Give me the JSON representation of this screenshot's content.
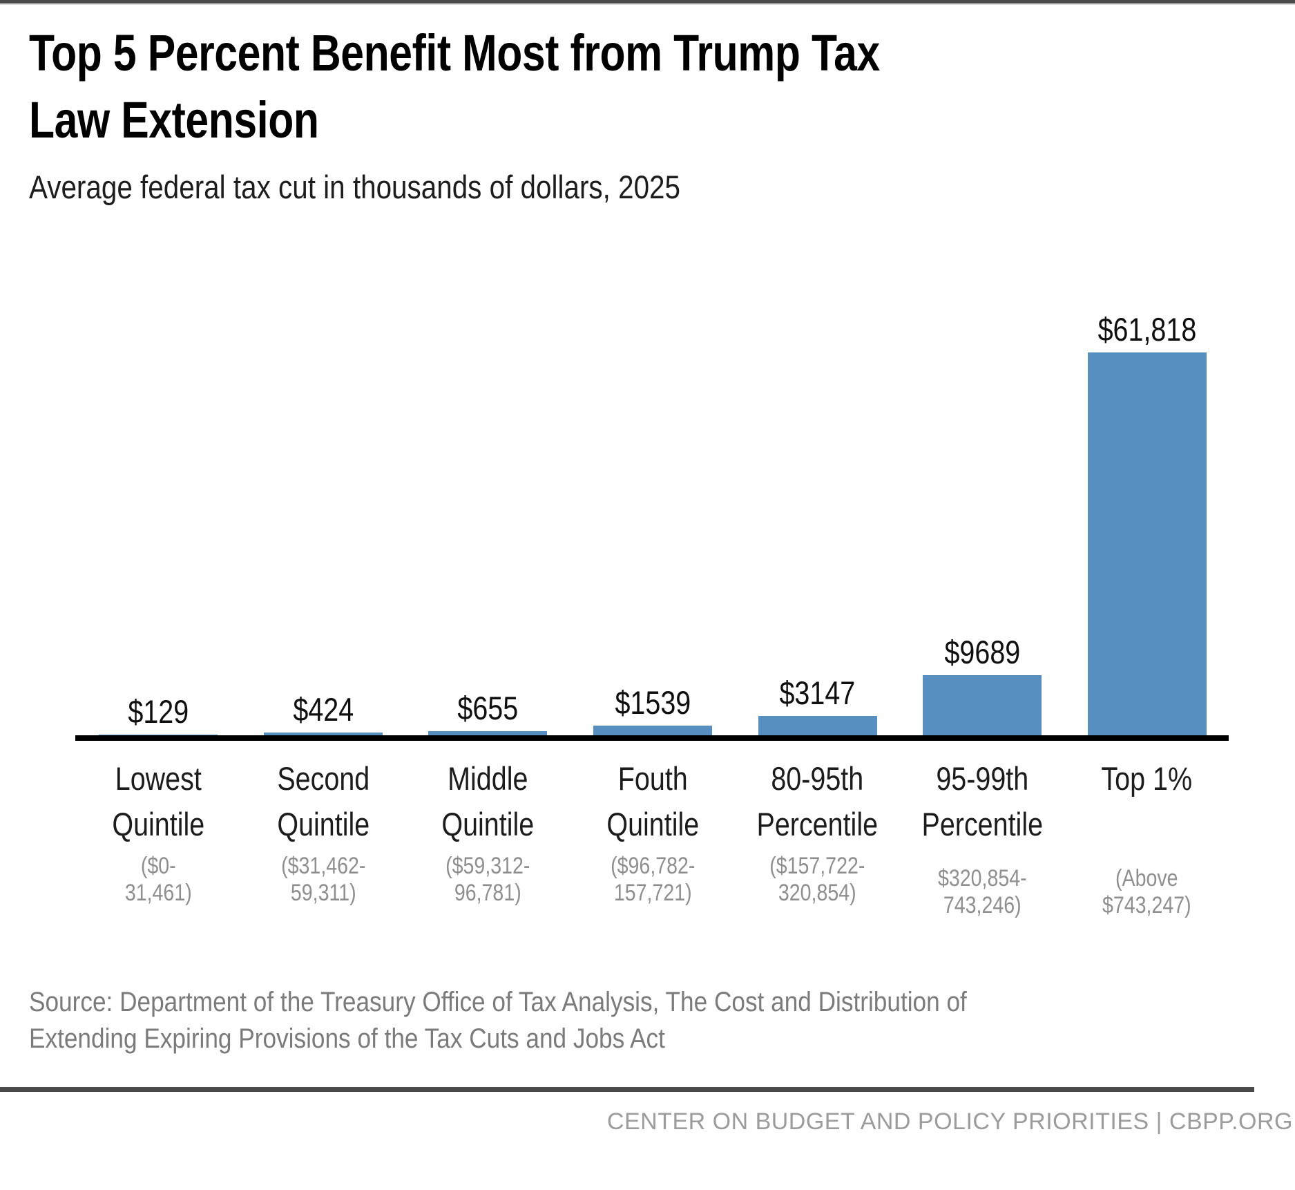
{
  "page": {
    "title": "Top 5 Percent Benefit Most from Trump Tax\nLaw Extension",
    "subtitle": "Average federal tax cut in thousands of dollars, 2025",
    "source": "Source: Department of the Treasury Office of Tax Analysis, The Cost and Distribution of\nExtending Expiring Provisions of the Tax Cuts and Jobs Act",
    "footer": "CENTER ON BUDGET AND POLICY PRIORITIES | CBPP.ORG"
  },
  "colors": {
    "bar": "#568fc0",
    "axis_line": "#000000",
    "accent_bars": "#4a4a4a",
    "range_text": "#8f8f8f",
    "source_text": "#7b7b7b",
    "footer_text": "#9c9c9c"
  },
  "chart_data": {
    "type": "bar",
    "title": "Top 5 Percent Benefit Most from Trump Tax Law Extension",
    "subtitle": "Average federal tax cut in thousands of dollars, 2025",
    "unit": "US dollars",
    "ylim": [
      0,
      61818
    ],
    "grid": false,
    "legend": false,
    "bar_color": "#568fc0",
    "axis_line_color": "#000000",
    "values": [
      129,
      424,
      655,
      1539,
      3147,
      9689,
      61818
    ],
    "value_labels": [
      "$129",
      "$424",
      "$655",
      "$1539",
      "$3147",
      "$9689",
      "$61,818"
    ],
    "categories": [
      {
        "name_lines": [
          "Lowest",
          "Quintile"
        ],
        "income_range_lines": [
          "($0-",
          "31,461)"
        ],
        "value": 129,
        "value_label": "$129"
      },
      {
        "name_lines": [
          "Second",
          "Quintile"
        ],
        "income_range_lines": [
          "($31,462-",
          "59,311)"
        ],
        "value": 424,
        "value_label": "$424"
      },
      {
        "name_lines": [
          "Middle",
          "Quintile"
        ],
        "income_range_lines": [
          "($59,312-",
          "96,781)"
        ],
        "value": 655,
        "value_label": "$655"
      },
      {
        "name_lines": [
          "Fouth",
          "Quintile"
        ],
        "income_range_lines": [
          "($96,782-",
          "157,721)"
        ],
        "value": 1539,
        "value_label": "$1539"
      },
      {
        "name_lines": [
          "80-95th",
          "Percentile"
        ],
        "income_range_lines": [
          "($157,722-",
          "320,854)"
        ],
        "value": 3147,
        "value_label": "$3147"
      },
      {
        "name_lines": [
          "95-99th",
          "Percentile"
        ],
        "income_range_lines": [
          "$320,854-",
          "743,246)"
        ],
        "value": 9689,
        "value_label": "$9689"
      },
      {
        "name_lines": [
          "Top 1%",
          ""
        ],
        "income_range_lines": [
          "(Above",
          "$743,247)"
        ],
        "value": 61818,
        "value_label": "$61,818"
      }
    ]
  }
}
